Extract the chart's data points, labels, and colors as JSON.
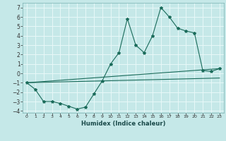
{
  "xlabel": "Humidex (Indice chaleur)",
  "xlim": [
    -0.5,
    23.5
  ],
  "ylim": [
    -4.2,
    7.5
  ],
  "xticks": [
    0,
    1,
    2,
    3,
    4,
    5,
    6,
    7,
    8,
    9,
    10,
    11,
    12,
    13,
    14,
    15,
    16,
    17,
    18,
    19,
    20,
    21,
    22,
    23
  ],
  "yticks": [
    -4,
    -3,
    -2,
    -1,
    0,
    1,
    2,
    3,
    4,
    5,
    6,
    7
  ],
  "bg_color": "#c5e8e8",
  "grid_color": "#e8f8f8",
  "line_color": "#1a6b5a",
  "series_main_x": [
    0,
    1,
    2,
    3,
    4,
    5,
    6,
    7,
    8,
    9,
    10,
    11,
    12,
    13,
    14,
    15,
    16,
    17,
    18,
    19,
    20,
    21,
    22,
    23
  ],
  "series_main_y": [
    -1.0,
    -1.7,
    -3.0,
    -3.0,
    -3.2,
    -3.5,
    -3.8,
    -3.6,
    -2.2,
    -0.8,
    1.0,
    2.2,
    5.8,
    3.0,
    2.2,
    4.0,
    7.0,
    6.0,
    4.8,
    4.5,
    4.3,
    0.3,
    0.2,
    0.5
  ],
  "line1_x": [
    0,
    23
  ],
  "line1_y": [
    -1.0,
    0.5
  ],
  "line2_x": [
    0,
    23
  ],
  "line2_y": [
    -1.0,
    -0.5
  ]
}
